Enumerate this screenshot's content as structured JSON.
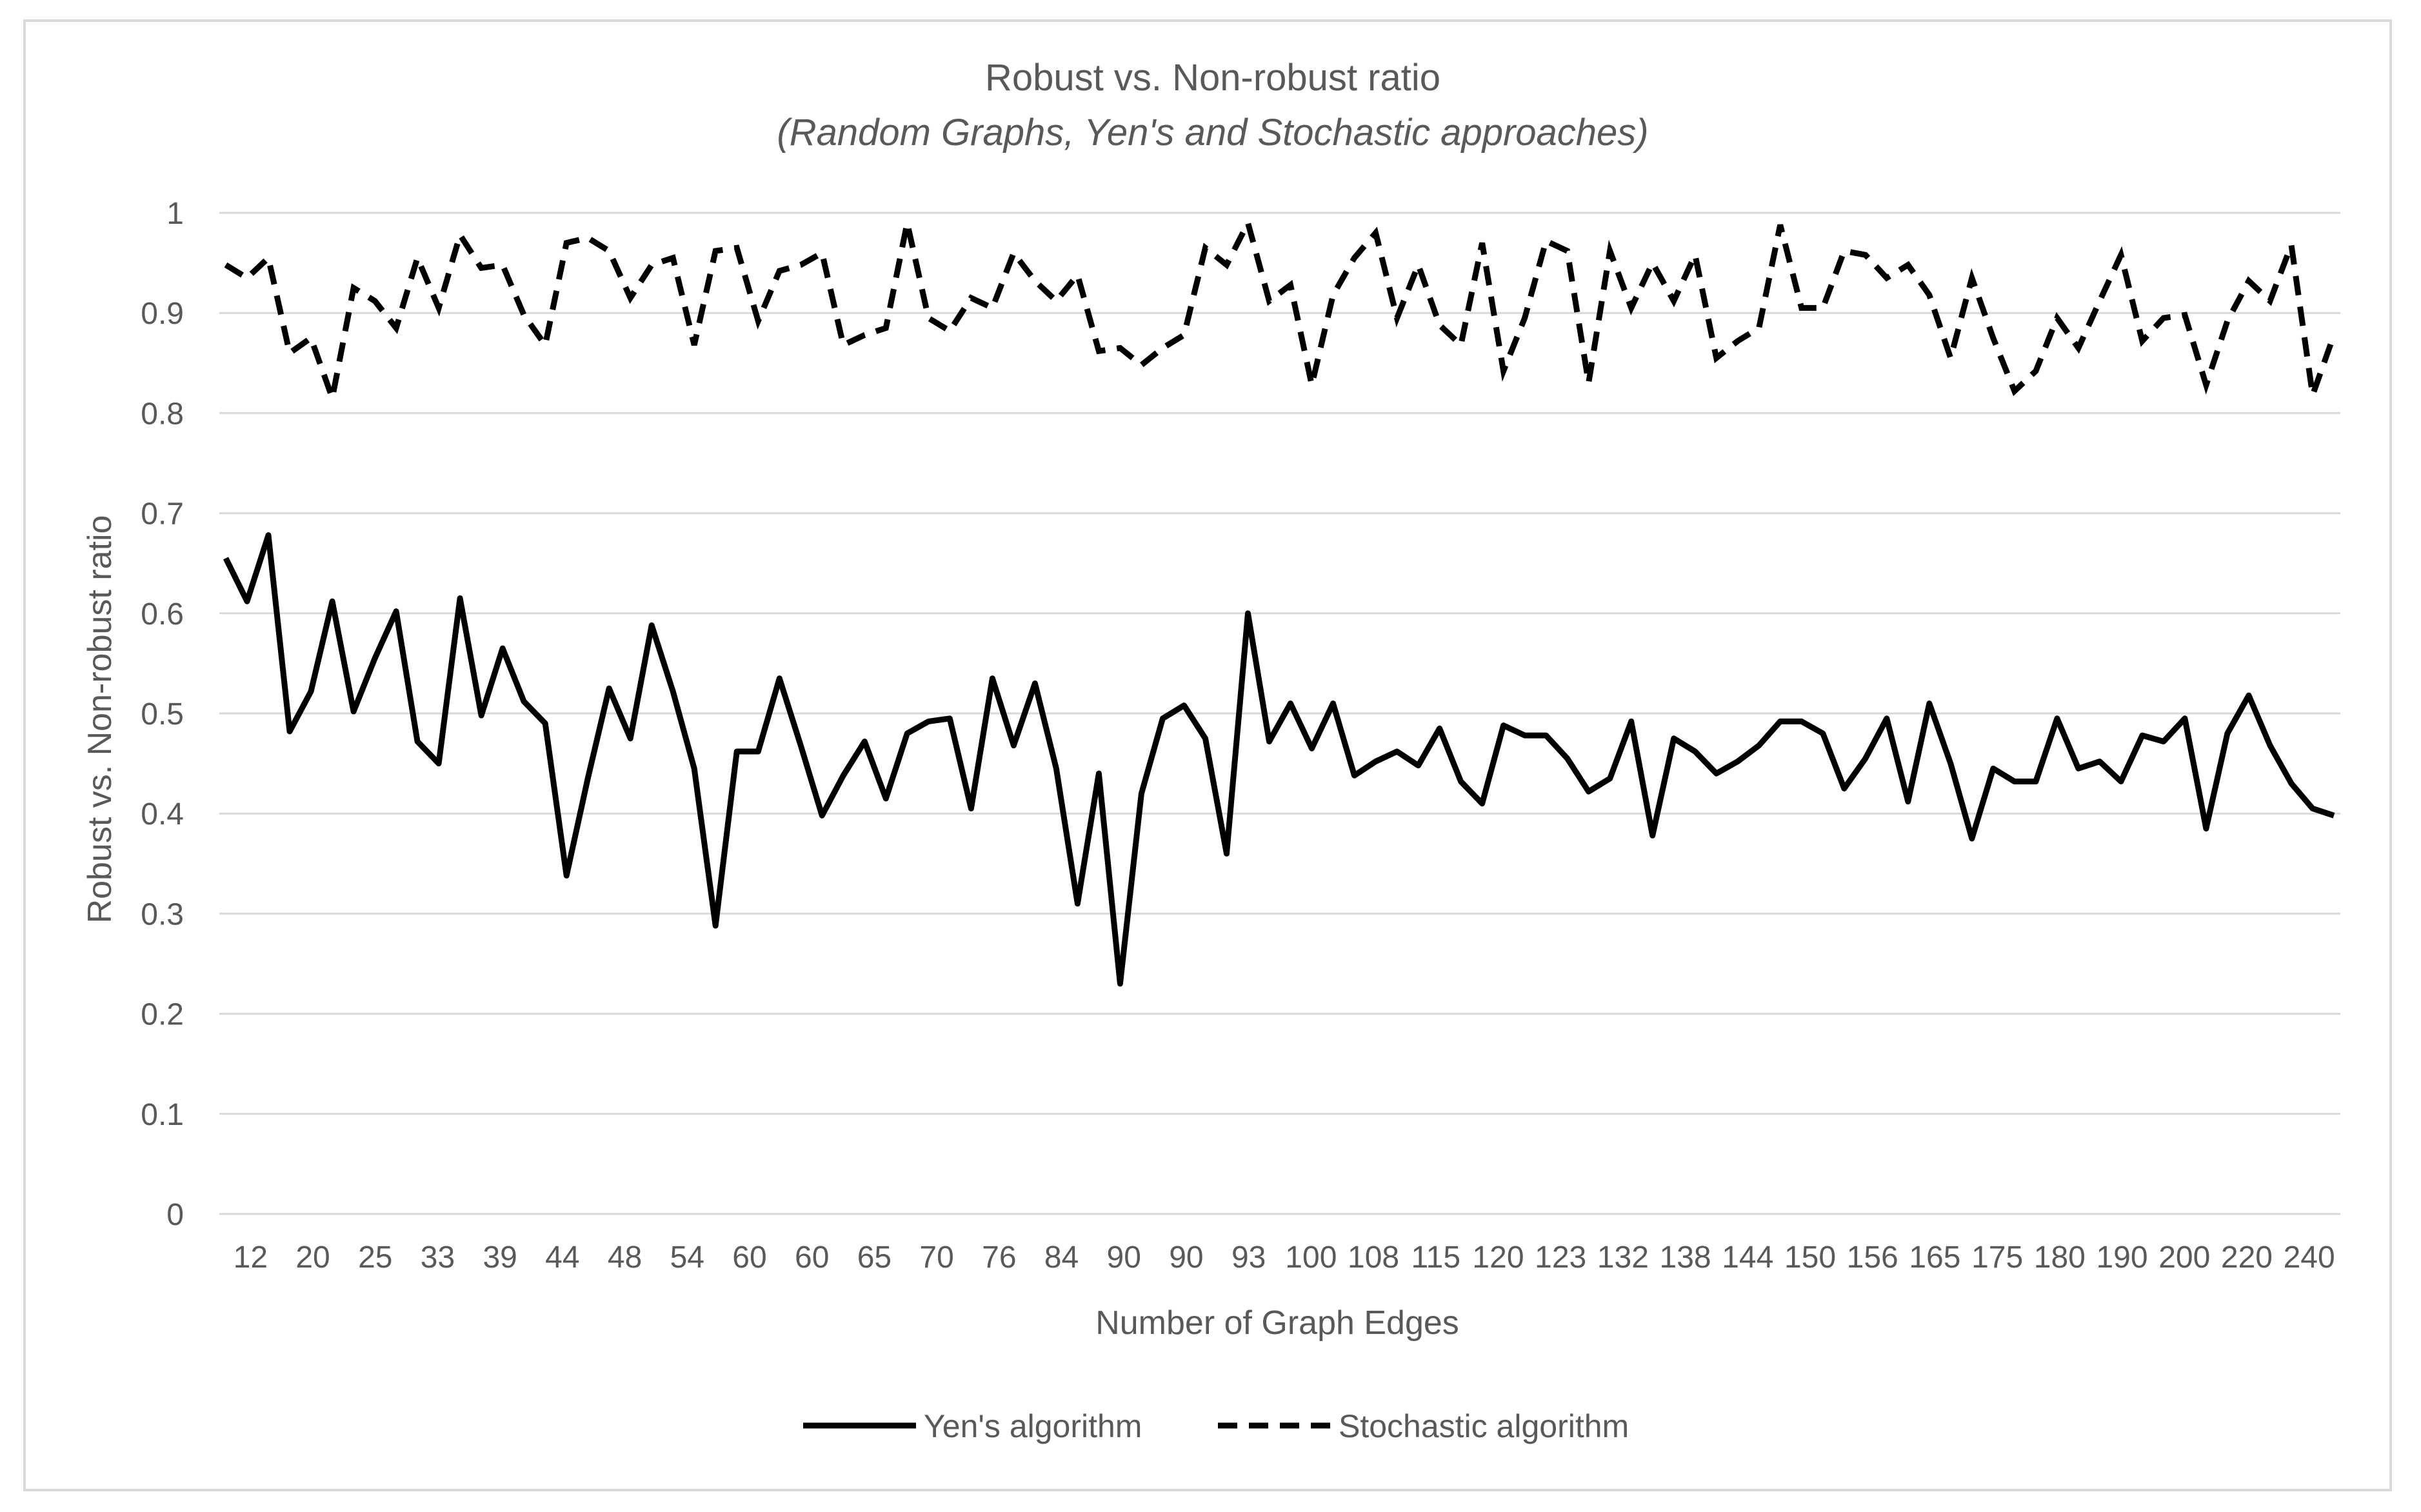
{
  "chart_data": {
    "type": "line",
    "title": "Robust vs. Non-robust ratio",
    "subtitle": "(Random Graphs, Yen's and Stochastic approaches)",
    "xlabel": "Number  of Graph Edges",
    "ylabel": "Robust vs. Non-robust ratio",
    "ylim": [
      0,
      1
    ],
    "yticks": [
      "0",
      "0.1",
      "0.2",
      "0.3",
      "0.4",
      "0.5",
      "0.6",
      "0.7",
      "0.8",
      "0.9",
      "1"
    ],
    "xtick_labels": [
      "12",
      "20",
      "25",
      "33",
      "39",
      "44",
      "48",
      "54",
      "60",
      "60",
      "65",
      "70",
      "76",
      "84",
      "90",
      "90",
      "93",
      "100",
      "108",
      "115",
      "120",
      "123",
      "132",
      "138",
      "144",
      "150",
      "156",
      "165",
      "175",
      "180",
      "190",
      "200",
      "220",
      "240"
    ],
    "grid": true,
    "legend_position": "bottom",
    "series": [
      {
        "name": "Yen's algorithm",
        "style": "solid",
        "values": [
          0.655,
          0.612,
          0.678,
          0.482,
          0.522,
          0.612,
          0.502,
          0.555,
          0.602,
          0.472,
          0.45,
          0.615,
          0.498,
          0.565,
          0.512,
          0.49,
          0.338,
          0.435,
          0.525,
          0.475,
          0.588,
          0.522,
          0.445,
          0.288,
          0.462,
          0.462,
          0.535,
          0.468,
          0.398,
          0.438,
          0.472,
          0.415,
          0.48,
          0.492,
          0.495,
          0.405,
          0.535,
          0.468,
          0.53,
          0.445,
          0.31,
          0.44,
          0.23,
          0.42,
          0.495,
          0.508,
          0.475,
          0.36,
          0.6,
          0.472,
          0.51,
          0.465,
          0.51,
          0.438,
          0.452,
          0.462,
          0.448,
          0.485,
          0.432,
          0.41,
          0.488,
          0.478,
          0.478,
          0.455,
          0.422,
          0.435,
          0.492,
          0.378,
          0.475,
          0.462,
          0.44,
          0.452,
          0.468,
          0.492,
          0.492,
          0.48,
          0.425,
          0.455,
          0.495,
          0.412,
          0.51,
          0.45,
          0.375,
          0.445,
          0.432,
          0.432,
          0.495,
          0.445,
          0.452,
          0.432,
          0.478,
          0.472,
          0.495,
          0.385,
          0.48,
          0.518,
          0.468,
          0.43,
          0.405,
          0.398
        ]
      },
      {
        "name": "Stochastic algorithm",
        "style": "dashed",
        "values": [
          0.948,
          0.935,
          0.955,
          0.86,
          0.875,
          0.815,
          0.925,
          0.912,
          0.885,
          0.955,
          0.905,
          0.978,
          0.945,
          0.948,
          0.898,
          0.868,
          0.97,
          0.975,
          0.962,
          0.915,
          0.948,
          0.955,
          0.868,
          0.962,
          0.965,
          0.892,
          0.942,
          0.948,
          0.96,
          0.868,
          0.878,
          0.885,
          0.99,
          0.895,
          0.882,
          0.915,
          0.905,
          0.96,
          0.932,
          0.912,
          0.938,
          0.862,
          0.865,
          0.848,
          0.865,
          0.878,
          0.965,
          0.948,
          0.99,
          0.912,
          0.928,
          0.828,
          0.918,
          0.955,
          0.98,
          0.895,
          0.948,
          0.888,
          0.868,
          0.97,
          0.842,
          0.895,
          0.972,
          0.962,
          0.83,
          0.962,
          0.905,
          0.95,
          0.912,
          0.958,
          0.855,
          0.872,
          0.885,
          0.988,
          0.905,
          0.905,
          0.962,
          0.958,
          0.935,
          0.948,
          0.918,
          0.855,
          0.935,
          0.875,
          0.822,
          0.842,
          0.895,
          0.865,
          0.912,
          0.958,
          0.872,
          0.895,
          0.898,
          0.828,
          0.892,
          0.932,
          0.912,
          0.968,
          0.818,
          0.878
        ]
      }
    ]
  }
}
